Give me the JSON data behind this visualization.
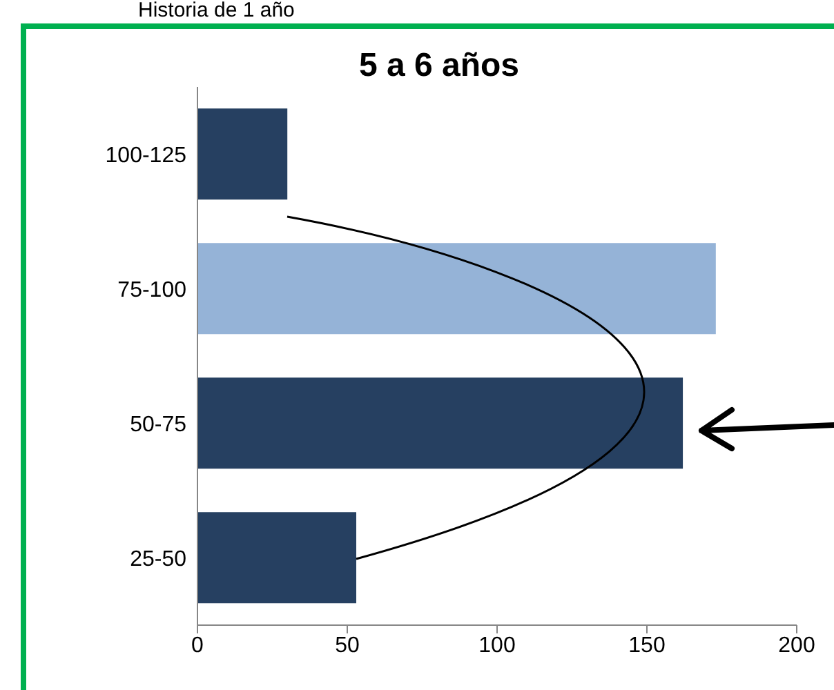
{
  "chart_data": {
    "type": "bar",
    "orientation": "horizontal",
    "title": "5 a 6 años",
    "annotations": [
      "Historia de 1 año"
    ],
    "categories": [
      "100-125",
      "75-100",
      "50-75",
      "25-50"
    ],
    "values": [
      30,
      173,
      162,
      53
    ],
    "colors": [
      "#264061",
      "#95b3d7",
      "#264061",
      "#264061"
    ],
    "xlim": [
      0,
      200
    ],
    "xticks": [
      0,
      50,
      100,
      150,
      200
    ],
    "grid": false
  }
}
